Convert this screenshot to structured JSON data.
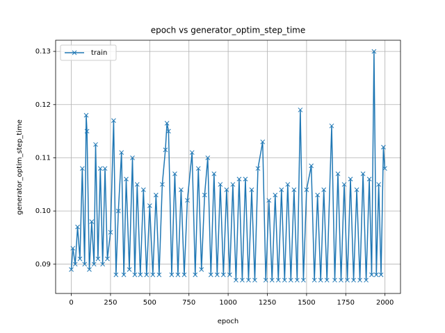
{
  "chart_data": {
    "type": "line",
    "title": "epoch vs generator_optim_step_time",
    "x_label": "epoch",
    "y_label": "generator_optim_step_time",
    "x": [
      0,
      10,
      25,
      40,
      55,
      70,
      85,
      95,
      100,
      115,
      130,
      145,
      155,
      170,
      185,
      200,
      215,
      230,
      250,
      270,
      285,
      300,
      320,
      335,
      350,
      370,
      390,
      405,
      420,
      440,
      460,
      480,
      500,
      520,
      540,
      560,
      580,
      600,
      610,
      620,
      640,
      660,
      680,
      700,
      720,
      740,
      770,
      790,
      810,
      830,
      850,
      870,
      890,
      910,
      930,
      950,
      970,
      990,
      1010,
      1030,
      1050,
      1070,
      1090,
      1110,
      1130,
      1150,
      1170,
      1190,
      1220,
      1240,
      1260,
      1280,
      1300,
      1320,
      1340,
      1360,
      1380,
      1400,
      1420,
      1440,
      1460,
      1480,
      1500,
      1530,
      1550,
      1570,
      1590,
      1610,
      1630,
      1660,
      1680,
      1700,
      1720,
      1740,
      1760,
      1780,
      1800,
      1820,
      1840,
      1860,
      1880,
      1900,
      1915,
      1930,
      1945,
      1960,
      1975,
      1990,
      1999
    ],
    "series": [
      {
        "name": "train",
        "color": "#1f77b4",
        "marker": "x",
        "values": [
          0.089,
          0.093,
          0.09,
          0.097,
          0.091,
          0.108,
          0.09,
          0.118,
          0.115,
          0.089,
          0.098,
          0.09,
          0.1125,
          0.091,
          0.108,
          0.09,
          0.108,
          0.091,
          0.096,
          0.117,
          0.088,
          0.1,
          0.111,
          0.088,
          0.106,
          0.089,
          0.11,
          0.088,
          0.105,
          0.088,
          0.104,
          0.088,
          0.101,
          0.088,
          0.103,
          0.088,
          0.105,
          0.1115,
          0.1165,
          0.115,
          0.088,
          0.107,
          0.088,
          0.104,
          0.088,
          0.102,
          0.111,
          0.088,
          0.108,
          0.089,
          0.103,
          0.11,
          0.088,
          0.107,
          0.088,
          0.105,
          0.088,
          0.104,
          0.088,
          0.105,
          0.087,
          0.106,
          0.087,
          0.106,
          0.087,
          0.104,
          0.087,
          0.108,
          0.113,
          0.087,
          0.102,
          0.087,
          0.103,
          0.087,
          0.104,
          0.087,
          0.105,
          0.087,
          0.104,
          0.087,
          0.119,
          0.087,
          0.104,
          0.1085,
          0.087,
          0.103,
          0.087,
          0.104,
          0.087,
          0.116,
          0.087,
          0.107,
          0.087,
          0.105,
          0.087,
          0.106,
          0.087,
          0.104,
          0.087,
          0.107,
          0.087,
          0.106,
          0.088,
          0.13,
          0.088,
          0.105,
          0.088,
          0.112,
          0.108
        ]
      }
    ],
    "xlim": [
      -99.95,
      2098.95
    ],
    "xticks": [
      0,
      250,
      500,
      750,
      1000,
      1250,
      1500,
      1750,
      2000
    ],
    "ylim": [
      0.0845,
      0.1321
    ],
    "yticks": [
      0.09,
      {
        "value": 0.1,
        "label": "0.10"
      },
      0.11,
      0.12,
      0.13
    ],
    "grid": true,
    "legend_loc": "upper left"
  }
}
